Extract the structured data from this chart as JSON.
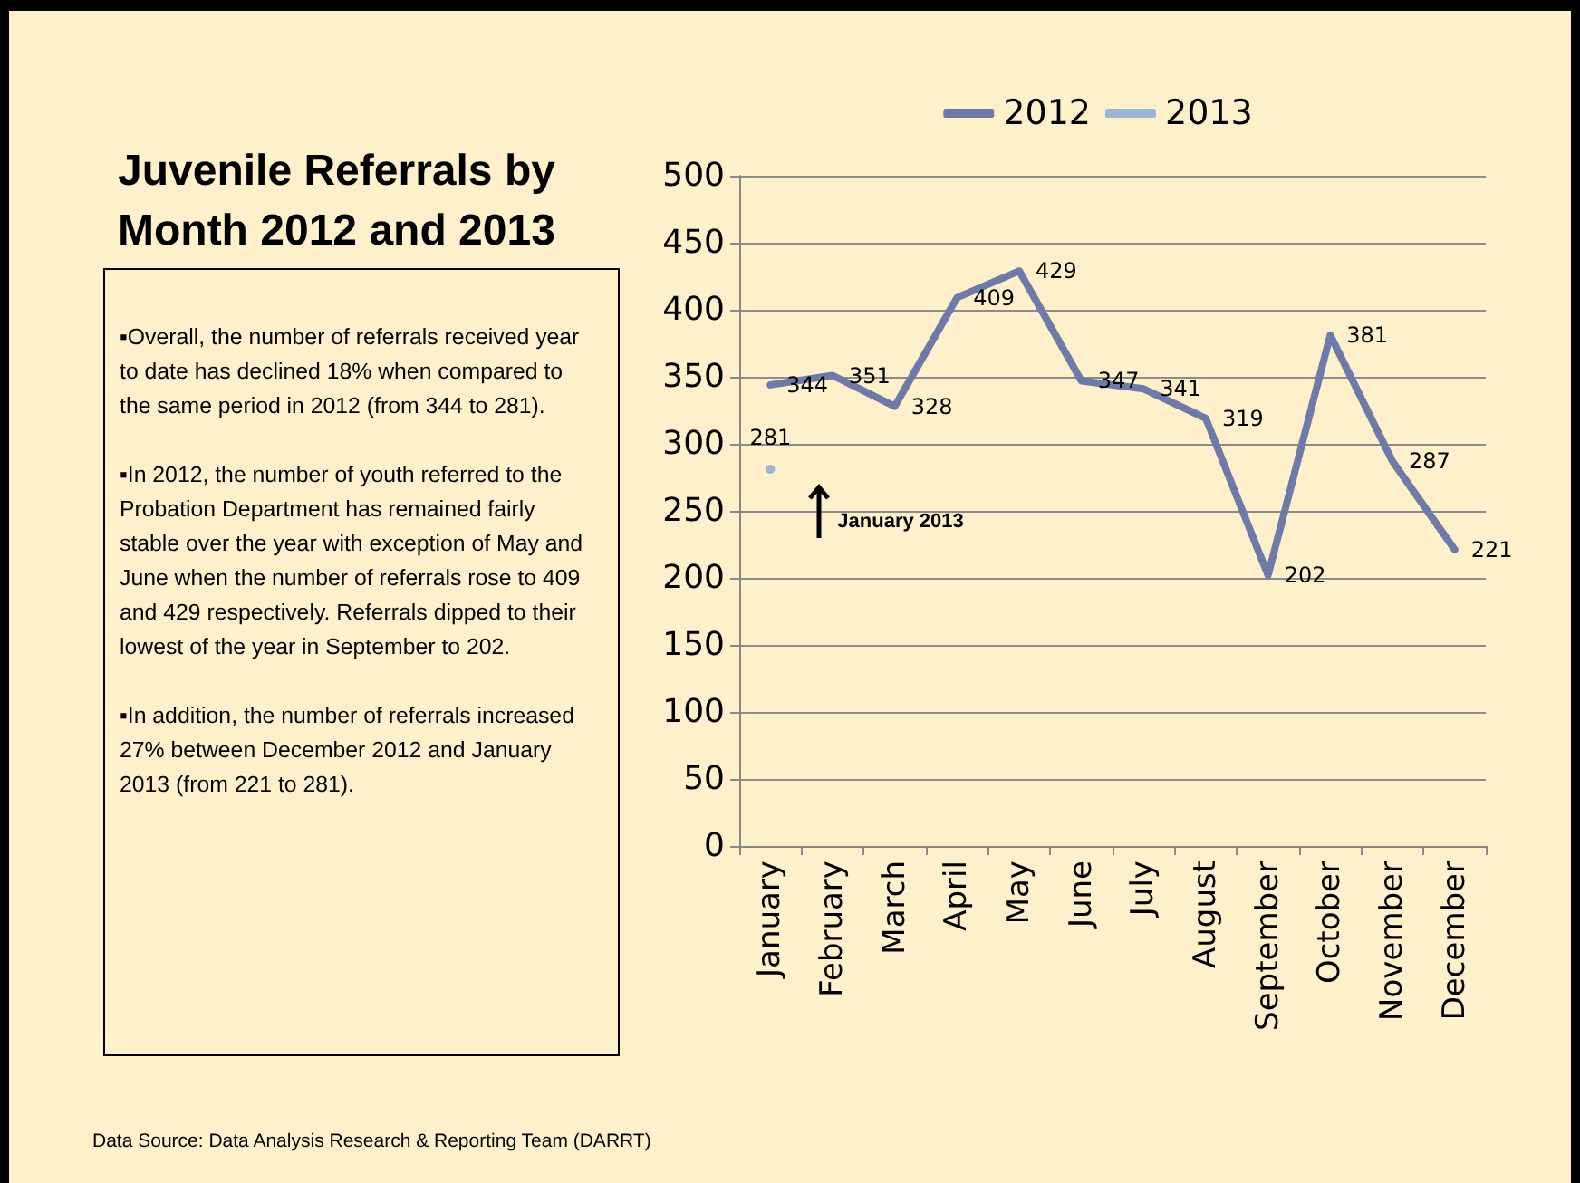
{
  "chart_data": {
    "type": "line",
    "title": "Juvenile Referrals by Month 2012 and 2013",
    "categories": [
      "January",
      "February",
      "March",
      "April",
      "May",
      "June",
      "July",
      "August",
      "September",
      "October",
      "November",
      "December"
    ],
    "series": [
      {
        "name": "2012",
        "color": "#6f7aa8",
        "marker": "none",
        "values": [
          344,
          351,
          328,
          409,
          429,
          347,
          341,
          319,
          202,
          381,
          287,
          221
        ]
      },
      {
        "name": "2013",
        "color": "#9bb7d4",
        "marker": "circle",
        "values": [
          281,
          null,
          null,
          null,
          null,
          null,
          null,
          null,
          null,
          null,
          null,
          null
        ]
      }
    ],
    "ylim": [
      0,
      500
    ],
    "yticks": [
      0,
      50,
      100,
      150,
      200,
      250,
      300,
      350,
      400,
      450,
      500
    ],
    "grid": "y",
    "legend": "top",
    "data_labels": true,
    "annotations": [
      "▪Overall, the number of referrals received year to date has declined 18% when compared to the same period in 2012 (from 344 to 281).",
      "▪In 2012, the number of youth referred to the Probation Department has remained fairly stable over the year with exception of May and June when the number of referrals rose to 409 and 429 respectively.  Referrals dipped to their lowest of the year in September to 202.",
      "▪In addition, the number of referrals increased 27% between December 2012 and January 2013 (from 221 to 281).",
      "January 2013",
      "Data Source: Data Analysis Research & Reporting Team (DARRT)"
    ]
  }
}
